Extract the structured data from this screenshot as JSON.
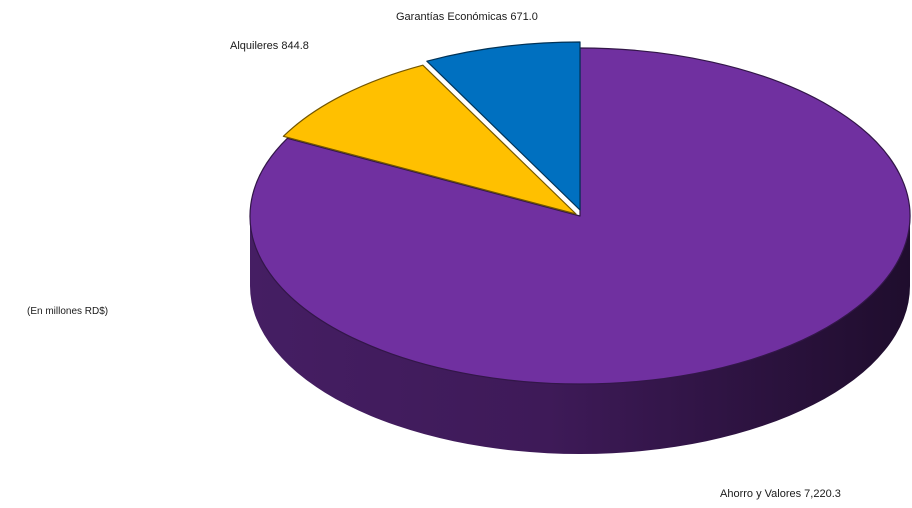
{
  "chart_data": {
    "type": "pie",
    "title": "",
    "unit_note": "(En millones RD$)",
    "slices": [
      {
        "name": "Ahorro y Valores",
        "value": 7220.3,
        "label": "Ahorro y Valores 7,220.3",
        "color": "#7030A0"
      },
      {
        "name": "Alquileres",
        "value": 844.8,
        "label": "Alquileres 844.8",
        "color": "#FFC000"
      },
      {
        "name": "Garantías Económicas",
        "value": 671.0,
        "label": "Garantías Económicas 671.0",
        "color": "#0070C0"
      }
    ],
    "style": "3d-exploded-pie"
  }
}
